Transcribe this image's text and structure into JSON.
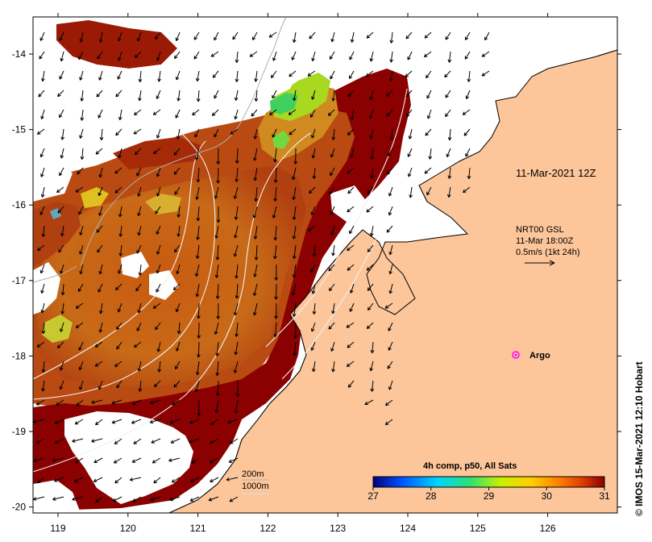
{
  "map": {
    "longitude_ticks": [
      "119",
      "120",
      "121",
      "122",
      "123",
      "124",
      "125",
      "126"
    ],
    "latitude_ticks": [
      "-14",
      "-15",
      "-16",
      "-17",
      "-18",
      "-19",
      "-20"
    ],
    "land_color": "#fdc69a",
    "ocean_nodata_color": "#ffffff",
    "coastline_color": "#000000"
  },
  "annotations": {
    "date_label": "11-Mar-2021 12Z",
    "current_source": "NRT00 GSL",
    "current_time": "11-Mar 18:00Z",
    "current_scale": "0.5m/s (1kt 24h)",
    "argo_label": "Argo",
    "argo_color": "#ff00ff",
    "contour_200": "200m",
    "contour_1000": "1000m",
    "credit": "© IMOS 15-Mar-2021 12:10 Hobart"
  },
  "colorbar": {
    "title": "4h comp, p50, All Sats",
    "min": 27,
    "max": 31,
    "labels": [
      "27",
      "28",
      "29",
      "30",
      "31"
    ],
    "colors": [
      "#00007f",
      "#0050ff",
      "#00d4ff",
      "#30e070",
      "#c8f000",
      "#ffd000",
      "#ff8000",
      "#e04000",
      "#8b0000"
    ]
  }
}
